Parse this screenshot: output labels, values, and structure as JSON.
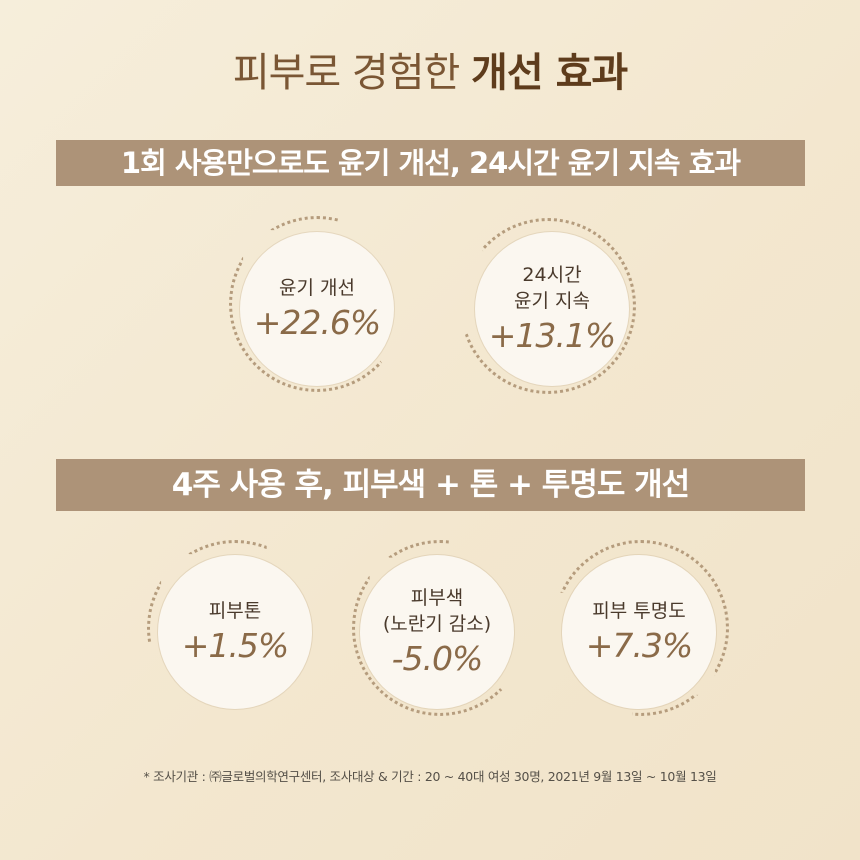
{
  "title": {
    "normal": "피부로 경험한 ",
    "bold": "개선 효과"
  },
  "band1": "1회 사용만으로도 윤기 개선, 24시간 윤기 지속 효과",
  "band2": "4주 사용 후, 피부색 + 톤 + 투명도 개선",
  "stats": [
    {
      "label1": "윤기 개선",
      "label2": "",
      "value": "+22.6%"
    },
    {
      "label1": "24시간",
      "label2": "윤기 지속",
      "value": "+13.1%"
    },
    {
      "label1": "피부톤",
      "label2": "",
      "value": "+1.5%"
    },
    {
      "label1": "피부색",
      "label2": "(노란기 감소)",
      "value": "-5.0%"
    },
    {
      "label1": "피부 투명도",
      "label2": "",
      "value": "+7.3%"
    }
  ],
  "note": "* 조사기관 : ㈜글로벌의학연구센터, 조사대상 & 기간 : 20 ~ 40대 여성 30명, 2021년 9월 13일 ~ 10월 13일",
  "colors": {
    "band": "#ad9378",
    "value": "#8a6a48",
    "background": "#f4e9d4"
  }
}
